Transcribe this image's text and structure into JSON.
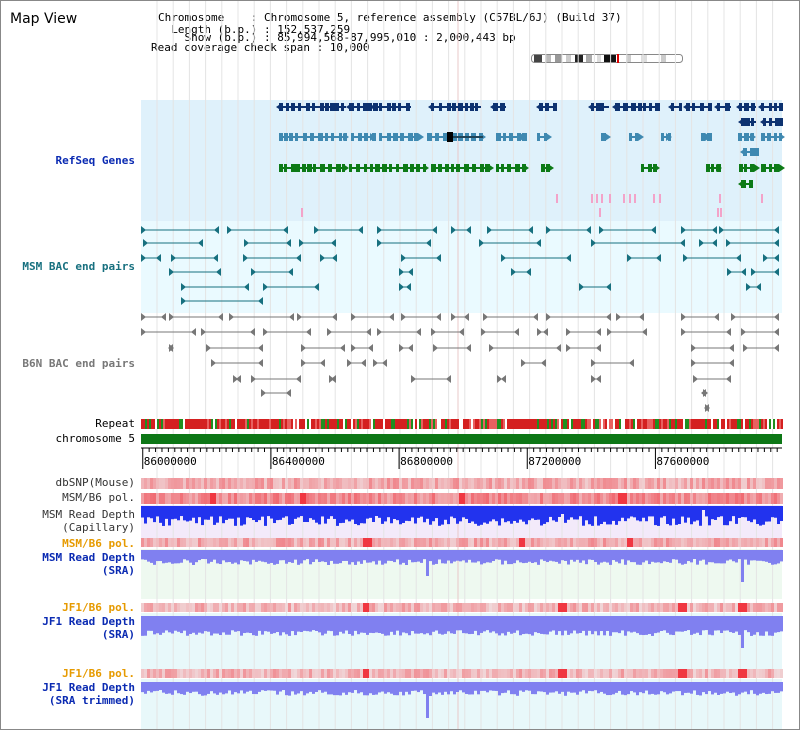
{
  "title": "Map View",
  "header": {
    "chromosome_label": "Chromosome    : ",
    "chromosome_value": "Chromosome 5, reference assembly (C57BL/6J) (Build 37)",
    "length_label": "  Length (b.p.) : ",
    "length_value": "152,537,259",
    "show_label": "    Show (b.p.) : ",
    "show_value": "85,994,568-87,995,010 : 2,000,443 bp",
    "coverage_label": "Read coverage check span : ",
    "coverage_value": "10,000"
  },
  "tracks": {
    "refseq": "RefSeq Genes",
    "msm_bac": "MSM BAC end pairs",
    "b6n_bac": "B6N BAC end pairs",
    "repeat": "Repeat",
    "chromosome": "chromosome 5",
    "dbsnp": "dbSNP(Mouse)",
    "msm_b6_pol_1": "MSM/B6 pol.",
    "msm_depth_cap_1": "MSM Read Depth",
    "msm_depth_cap_2": "(Capillary)",
    "msm_b6_pol_2": "MSM/B6 pol.",
    "msm_depth_sra_1": "MSM Read Depth",
    "msm_depth_sra_2": "(SRA)",
    "jf1_b6_pol_1": "JF1/B6 pol.",
    "jf1_depth_sra_1": "JF1 Read Depth",
    "jf1_depth_sra_2": "(SRA)",
    "jf1_b6_pol_2": "JF1/B6 pol.",
    "jf1_depth_trim_1": "JF1 Read Depth",
    "jf1_depth_trim_2": "(SRA trimmed)"
  },
  "axis": {
    "ticks": [
      "86000000",
      "86400000",
      "86800000",
      "87200000",
      "87600000"
    ],
    "tick_values": [
      86000000,
      86400000,
      86800000,
      87200000,
      87600000
    ],
    "range": [
      85994568,
      87995010
    ]
  },
  "colors": {
    "refseq_bg": "#dff1fb",
    "msm_bac_bg": "#eafaff",
    "gene_navy": "#0d3270",
    "gene_blue": "#3f89b1",
    "gene_green": "#0d7a16",
    "gene_pink": "#f3a3c9",
    "msm_bac": "#17707f",
    "b6n_bac": "#777777",
    "chromosome_bar": "#0d7716",
    "label_blue": "#0a2ab2",
    "label_orange": "#e69a00",
    "depth_blue": "#2233ee",
    "depth_light": "#8080f0",
    "pol_red": "#f0303a"
  }
}
